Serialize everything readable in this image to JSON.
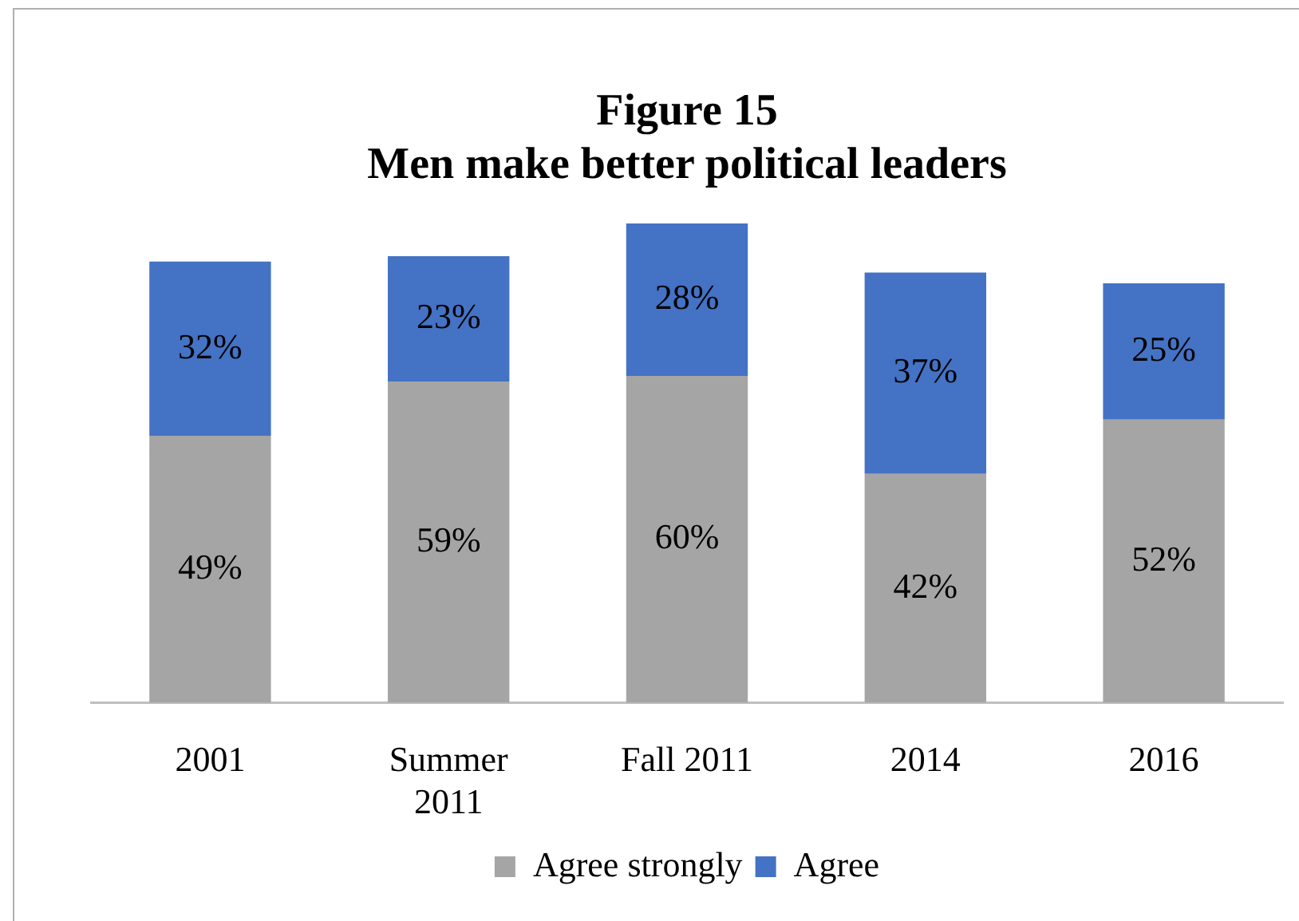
{
  "chart_data": {
    "type": "bar",
    "title": "Figure 15",
    "subtitle": "Men make better political leaders",
    "categories": [
      "2001",
      "Summer 2011",
      "Fall 2011",
      "2014",
      "2016"
    ],
    "stacked": true,
    "tick_labels": "x",
    "grid": false,
    "legend": "bottom",
    "series": [
      {
        "name": "Agree strongly",
        "color": "#a5a5a5",
        "values": [
          49,
          59,
          60,
          42,
          52
        ],
        "value_labels": [
          "49%",
          "59%",
          "60%",
          "42%",
          "52%"
        ]
      },
      {
        "name": "Agree",
        "color": "#4472c4",
        "values": [
          32,
          23,
          28,
          37,
          25
        ],
        "value_labels": [
          "32%",
          "23%",
          "28%",
          "37%",
          "25%"
        ]
      }
    ]
  }
}
